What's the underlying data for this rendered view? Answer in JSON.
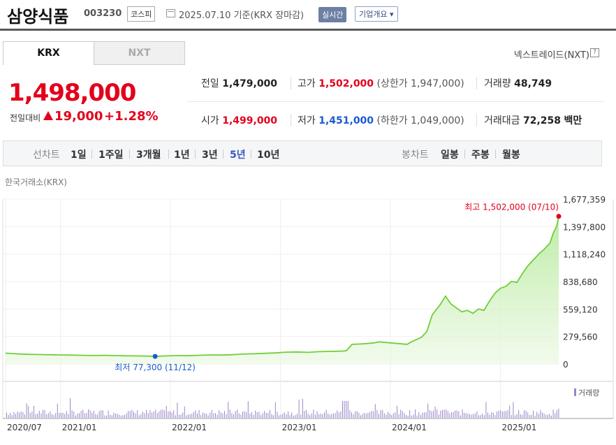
{
  "header": {
    "company": "삼양식품",
    "code": "003230",
    "market": "코스피",
    "date_text": "2025.07.10 기준(KRX 장마감)",
    "realtime": "실시간",
    "overview": "기업개요 ▾"
  },
  "tabs": [
    {
      "label": "KRX",
      "active": true
    },
    {
      "label": "NXT",
      "active": false
    }
  ],
  "nextrade_label": "넥스트레이드(NXT)",
  "help_icon": "?",
  "quote": {
    "price": "1,498,000",
    "change_label": "전일대비",
    "change_value": "19,000",
    "change_pct": "+1.28%",
    "prev_close": {
      "label": "전일",
      "value": "1,479,000"
    },
    "high": {
      "label": "고가",
      "value": "1,502,000",
      "sub": "(상한가 1,947,000)"
    },
    "volume": {
      "label": "거래량",
      "value": "48,749"
    },
    "open": {
      "label": "시가",
      "value": "1,499,000"
    },
    "low": {
      "label": "저가",
      "value": "1,451,000",
      "sub": "(하한가 1,049,000)"
    },
    "amount": {
      "label": "거래대금",
      "value": "72,258",
      "unit": "백만"
    }
  },
  "period_bar": {
    "line_label": "선차트",
    "line_items": [
      "1일",
      "1주일",
      "3개월",
      "1년",
      "3년",
      "5년",
      "10년"
    ],
    "active": "5년",
    "candle_label": "봉차트",
    "candle_items": [
      "일봉",
      "주봉",
      "월봉"
    ]
  },
  "colors": {
    "up": "#e3001b",
    "down": "#1a5bd3",
    "line": "#6fcf3a",
    "volume": "#9a86c8"
  },
  "chart_data": {
    "type": "area",
    "source_label": "한국거래소(KRX)",
    "y_ticks": [
      "1,677,359",
      "1,397,800",
      "1,118,240",
      "838,680",
      "559,120",
      "279,560",
      "0"
    ],
    "y_tick_values": [
      1677359,
      1397800,
      1118240,
      838680,
      559120,
      279560,
      0
    ],
    "ylim": [
      0,
      1677359
    ],
    "x_ticks": [
      "2020/07",
      "2021/01",
      "2022/01",
      "2023/01",
      "2024/01",
      "2025/01"
    ],
    "x_tick_times": [
      2020.5,
      2021.0,
      2022.0,
      2023.0,
      2024.0,
      2025.0
    ],
    "xlim": [
      2020.5,
      2025.53
    ],
    "high_label": "최고 1,502,000 (07/10)",
    "high_point": {
      "t": 2025.53,
      "v": 1502000
    },
    "low_label": "최저 77,300 (11/12)",
    "low_point": {
      "t": 2021.86,
      "v": 77300
    },
    "volume_legend": "거래량",
    "series": [
      {
        "values": [
          [
            2020.5,
            110000
          ],
          [
            2020.6,
            103000
          ],
          [
            2020.7,
            98000
          ],
          [
            2020.8,
            96000
          ],
          [
            2020.9,
            94000
          ],
          [
            2021.0,
            92000
          ],
          [
            2021.1,
            90000
          ],
          [
            2021.2,
            88000
          ],
          [
            2021.3,
            86000
          ],
          [
            2021.4,
            88000
          ],
          [
            2021.5,
            85000
          ],
          [
            2021.6,
            83000
          ],
          [
            2021.7,
            82000
          ],
          [
            2021.8,
            80000
          ],
          [
            2021.86,
            77300
          ],
          [
            2021.95,
            82000
          ],
          [
            2022.05,
            85000
          ],
          [
            2022.15,
            84000
          ],
          [
            2022.25,
            88000
          ],
          [
            2022.35,
            92000
          ],
          [
            2022.45,
            90000
          ],
          [
            2022.55,
            94000
          ],
          [
            2022.65,
            100000
          ],
          [
            2022.75,
            104000
          ],
          [
            2022.85,
            108000
          ],
          [
            2022.95,
            112000
          ],
          [
            2023.05,
            120000
          ],
          [
            2023.15,
            122000
          ],
          [
            2023.25,
            118000
          ],
          [
            2023.35,
            125000
          ],
          [
            2023.45,
            128000
          ],
          [
            2023.55,
            130000
          ],
          [
            2023.6,
            135000
          ],
          [
            2023.65,
            200000
          ],
          [
            2023.75,
            205000
          ],
          [
            2023.85,
            215000
          ],
          [
            2023.9,
            225000
          ],
          [
            2024.0,
            215000
          ],
          [
            2024.1,
            205000
          ],
          [
            2024.15,
            200000
          ],
          [
            2024.2,
            230000
          ],
          [
            2024.28,
            270000
          ],
          [
            2024.33,
            330000
          ],
          [
            2024.38,
            500000
          ],
          [
            2024.45,
            600000
          ],
          [
            2024.5,
            690000
          ],
          [
            2024.55,
            610000
          ],
          [
            2024.6,
            570000
          ],
          [
            2024.65,
            530000
          ],
          [
            2024.7,
            545000
          ],
          [
            2024.75,
            515000
          ],
          [
            2024.8,
            560000
          ],
          [
            2024.85,
            545000
          ],
          [
            2024.9,
            640000
          ],
          [
            2024.95,
            720000
          ],
          [
            2025.0,
            770000
          ],
          [
            2025.05,
            790000
          ],
          [
            2025.1,
            840000
          ],
          [
            2025.15,
            830000
          ],
          [
            2025.2,
            920000
          ],
          [
            2025.25,
            1000000
          ],
          [
            2025.3,
            1060000
          ],
          [
            2025.35,
            1120000
          ],
          [
            2025.4,
            1170000
          ],
          [
            2025.45,
            1230000
          ],
          [
            2025.48,
            1330000
          ],
          [
            2025.51,
            1400000
          ],
          [
            2025.53,
            1502000
          ]
        ]
      }
    ]
  }
}
